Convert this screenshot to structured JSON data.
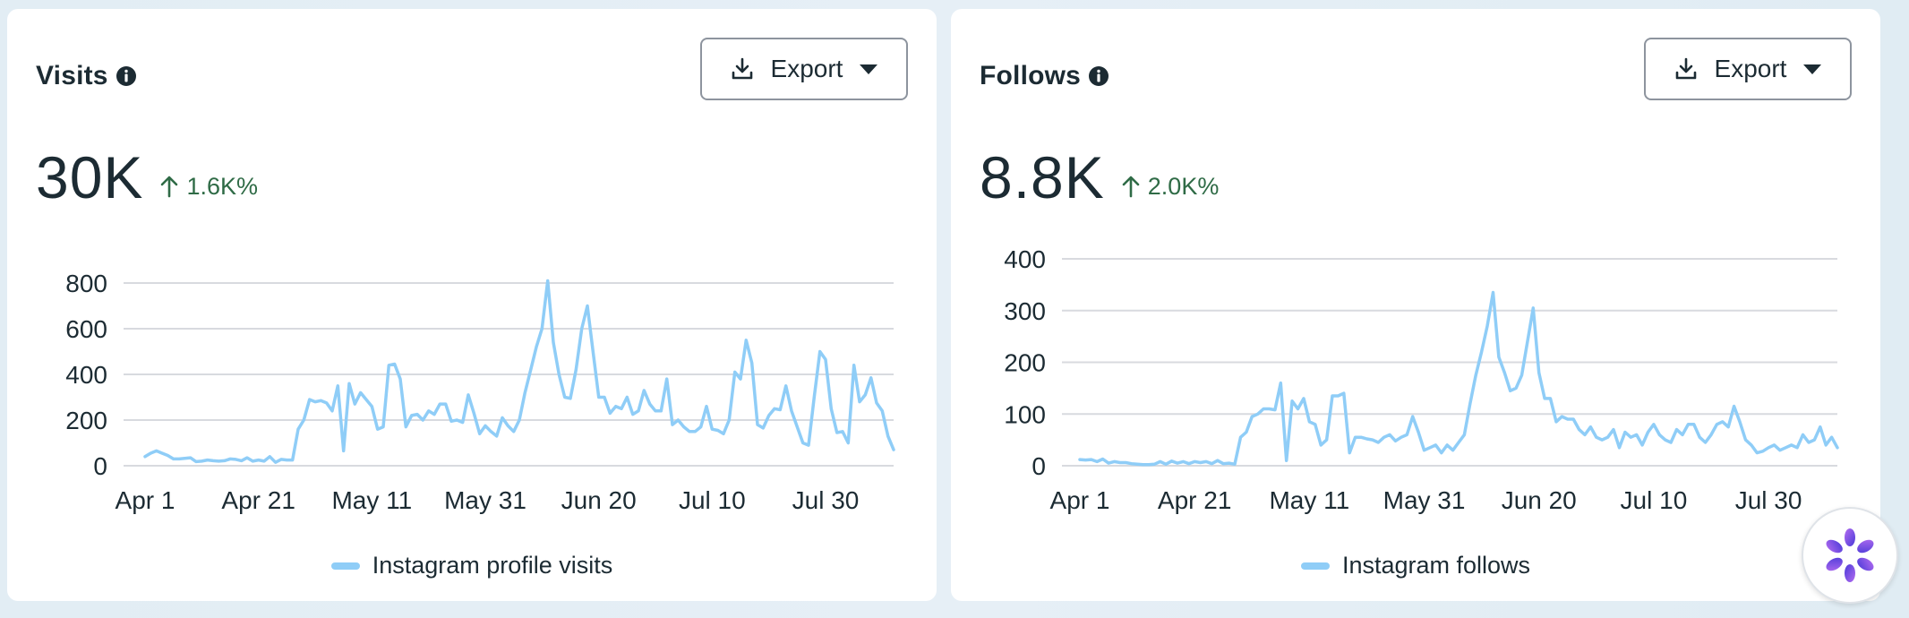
{
  "colors": {
    "series": "#8fcdf7",
    "positive": "#2f6b46",
    "grid": "#d8dadf",
    "text": "#1c2b33",
    "assistant": "#7b4fe0"
  },
  "icons": {
    "info": "info-icon",
    "export": "download-icon",
    "dropdown": "caret-down-icon",
    "assistant": "assistant-flower-icon"
  },
  "cards": [
    {
      "title": "Visits",
      "export_label": "Export",
      "value": "30K",
      "delta": "1.6K%",
      "legend": "Instagram profile visits"
    },
    {
      "title": "Follows",
      "export_label": "Export",
      "value": "8.8K",
      "delta": "2.0K%",
      "legend": "Instagram follows"
    }
  ],
  "chart_data": [
    {
      "type": "line",
      "x_tick_labels": [
        "Apr 1",
        "Apr 21",
        "May 11",
        "May 31",
        "Jun 20",
        "Jul 10",
        "Jul 30"
      ],
      "x_tick_days": [
        0,
        20,
        40,
        60,
        80,
        100,
        120
      ],
      "ylim": [
        0,
        800
      ],
      "y_ticks": [
        0,
        200,
        400,
        600,
        800
      ],
      "grid": true,
      "legend_position": "bottom-center",
      "series": [
        {
          "name": "Instagram profile visits",
          "values": [
            40,
            55,
            65,
            55,
            45,
            30,
            30,
            32,
            35,
            18,
            20,
            25,
            22,
            20,
            22,
            30,
            28,
            22,
            35,
            20,
            25,
            20,
            40,
            15,
            28,
            25,
            25,
            160,
            200,
            290,
            280,
            285,
            275,
            240,
            350,
            65,
            360,
            270,
            320,
            290,
            260,
            160,
            170,
            440,
            445,
            380,
            170,
            220,
            225,
            200,
            240,
            225,
            270,
            270,
            195,
            200,
            190,
            310,
            230,
            140,
            175,
            150,
            130,
            210,
            175,
            150,
            200,
            320,
            420,
            520,
            600,
            810,
            540,
            400,
            300,
            295,
            420,
            600,
            700,
            500,
            300,
            300,
            230,
            260,
            250,
            300,
            225,
            240,
            330,
            270,
            240,
            240,
            380,
            180,
            200,
            170,
            150,
            150,
            170,
            260,
            160,
            155,
            140,
            200,
            410,
            380,
            550,
            450,
            180,
            165,
            220,
            250,
            245,
            350,
            240,
            170,
            100,
            90,
            300,
            500,
            465,
            250,
            145,
            150,
            100,
            440,
            280,
            310,
            385,
            275,
            240,
            130,
            70
          ]
        }
      ]
    },
    {
      "type": "line",
      "x_tick_labels": [
        "Apr 1",
        "Apr 21",
        "May 11",
        "May 31",
        "Jun 20",
        "Jul 10",
        "Jul 30"
      ],
      "x_tick_days": [
        0,
        20,
        40,
        60,
        80,
        100,
        120
      ],
      "ylim": [
        0,
        400
      ],
      "y_ticks": [
        0,
        100,
        200,
        300,
        400
      ],
      "grid": true,
      "legend_position": "bottom-center",
      "series": [
        {
          "name": "Instagram follows",
          "values": [
            12,
            11,
            12,
            8,
            13,
            5,
            8,
            6,
            6,
            4,
            3,
            2,
            2,
            3,
            8,
            3,
            9,
            5,
            8,
            4,
            8,
            6,
            8,
            4,
            10,
            4,
            5,
            3,
            55,
            65,
            95,
            100,
            110,
            110,
            108,
            160,
            10,
            125,
            110,
            130,
            85,
            80,
            40,
            50,
            135,
            135,
            140,
            25,
            55,
            55,
            52,
            50,
            45,
            55,
            60,
            48,
            55,
            60,
            95,
            65,
            30,
            35,
            40,
            25,
            40,
            30,
            45,
            60,
            120,
            175,
            220,
            270,
            335,
            210,
            180,
            145,
            150,
            175,
            240,
            305,
            180,
            130,
            130,
            85,
            95,
            90,
            90,
            70,
            60,
            75,
            55,
            50,
            55,
            70,
            35,
            65,
            55,
            60,
            40,
            65,
            80,
            60,
            50,
            45,
            70,
            60,
            80,
            80,
            55,
            45,
            60,
            80,
            85,
            75,
            115,
            85,
            50,
            40,
            25,
            28,
            35,
            40,
            30,
            35,
            40,
            35,
            60,
            45,
            50,
            75,
            40,
            55,
            35
          ]
        }
      ]
    }
  ]
}
